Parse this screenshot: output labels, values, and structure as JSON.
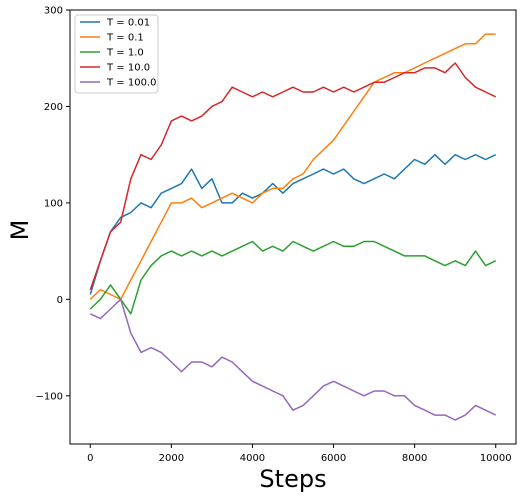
{
  "chart_data": {
    "type": "line",
    "title": "",
    "xlabel": "Steps",
    "ylabel": "M",
    "xlim": [
      -500,
      10500
    ],
    "ylim": [
      -150,
      300
    ],
    "x_ticks": [
      0,
      2000,
      4000,
      6000,
      8000,
      10000
    ],
    "y_ticks": [
      -100,
      0,
      100,
      200,
      300
    ],
    "x_tick_labels": [
      "0",
      "2000",
      "4000",
      "6000",
      "8000",
      "10000"
    ],
    "y_tick_labels": [
      "−100",
      "0",
      "100",
      "200",
      "300"
    ],
    "grid": false,
    "legend": "top-left",
    "series": [
      {
        "name": "T = 0.01",
        "color": "#1f77b4",
        "x": [
          0,
          250,
          500,
          750,
          1000,
          1250,
          1500,
          1750,
          2000,
          2250,
          2500,
          2750,
          3000,
          3250,
          3500,
          3750,
          4000,
          4250,
          4500,
          4750,
          5000,
          5250,
          5500,
          5750,
          6000,
          6250,
          6500,
          6750,
          7000,
          7250,
          7500,
          7750,
          8000,
          8250,
          8500,
          8750,
          9000,
          9250,
          9500,
          9750,
          10000
        ],
        "values": [
          5,
          40,
          70,
          85,
          90,
          100,
          95,
          110,
          115,
          120,
          135,
          115,
          125,
          100,
          100,
          110,
          105,
          110,
          120,
          110,
          120,
          125,
          130,
          135,
          130,
          135,
          125,
          120,
          125,
          130,
          125,
          135,
          145,
          140,
          150,
          140,
          150,
          145,
          150,
          145,
          150
        ]
      },
      {
        "name": "T = 0.1",
        "color": "#ff7f0e",
        "x": [
          0,
          250,
          500,
          750,
          1000,
          1250,
          1500,
          1750,
          2000,
          2250,
          2500,
          2750,
          3000,
          3250,
          3500,
          3750,
          4000,
          4250,
          4500,
          4750,
          5000,
          5250,
          5500,
          5750,
          6000,
          6250,
          6500,
          6750,
          7000,
          7250,
          7500,
          7750,
          8000,
          8250,
          8500,
          8750,
          9000,
          9250,
          9500,
          9750,
          10000
        ],
        "values": [
          0,
          10,
          5,
          0,
          20,
          40,
          60,
          80,
          100,
          100,
          105,
          95,
          100,
          105,
          110,
          105,
          100,
          110,
          115,
          115,
          125,
          130,
          145,
          155,
          165,
          180,
          195,
          210,
          225,
          230,
          235,
          235,
          240,
          245,
          250,
          255,
          260,
          265,
          265,
          275,
          275
        ]
      },
      {
        "name": "T = 1.0",
        "color": "#2ca02c",
        "x": [
          0,
          250,
          500,
          750,
          1000,
          1250,
          1500,
          1750,
          2000,
          2250,
          2500,
          2750,
          3000,
          3250,
          3500,
          3750,
          4000,
          4250,
          4500,
          4750,
          5000,
          5250,
          5500,
          5750,
          6000,
          6250,
          6500,
          6750,
          7000,
          7250,
          7500,
          7750,
          8000,
          8250,
          8500,
          8750,
          9000,
          9250,
          9500,
          9750,
          10000
        ],
        "values": [
          -10,
          0,
          15,
          0,
          -15,
          20,
          35,
          45,
          50,
          45,
          50,
          45,
          50,
          45,
          50,
          55,
          60,
          50,
          55,
          50,
          60,
          55,
          50,
          55,
          60,
          55,
          55,
          60,
          60,
          55,
          50,
          45,
          45,
          45,
          40,
          35,
          40,
          35,
          50,
          35,
          40
        ]
      },
      {
        "name": "T = 10.0",
        "color": "#d62728",
        "x": [
          0,
          250,
          500,
          750,
          1000,
          1250,
          1500,
          1750,
          2000,
          2250,
          2500,
          2750,
          3000,
          3250,
          3500,
          3750,
          4000,
          4250,
          4500,
          4750,
          5000,
          5250,
          5500,
          5750,
          6000,
          6250,
          6500,
          6750,
          7000,
          7250,
          7500,
          7750,
          8000,
          8250,
          8500,
          8750,
          9000,
          9250,
          9500,
          9750,
          10000
        ],
        "values": [
          10,
          40,
          70,
          80,
          125,
          150,
          145,
          160,
          185,
          190,
          185,
          190,
          200,
          205,
          220,
          215,
          210,
          215,
          210,
          215,
          220,
          215,
          215,
          220,
          215,
          220,
          215,
          220,
          225,
          225,
          230,
          235,
          235,
          240,
          240,
          235,
          245,
          230,
          220,
          215,
          210
        ]
      },
      {
        "name": "T = 100.0",
        "color": "#9467bd",
        "x": [
          0,
          250,
          500,
          750,
          1000,
          1250,
          1500,
          1750,
          2000,
          2250,
          2500,
          2750,
          3000,
          3250,
          3500,
          3750,
          4000,
          4250,
          4500,
          4750,
          5000,
          5250,
          5500,
          5750,
          6000,
          6250,
          6500,
          6750,
          7000,
          7250,
          7500,
          7750,
          8000,
          8250,
          8500,
          8750,
          9000,
          9250,
          9500,
          9750,
          10000
        ],
        "values": [
          -15,
          -20,
          -10,
          0,
          -35,
          -55,
          -50,
          -55,
          -65,
          -75,
          -65,
          -65,
          -70,
          -60,
          -65,
          -75,
          -85,
          -90,
          -95,
          -100,
          -115,
          -110,
          -100,
          -90,
          -85,
          -90,
          -95,
          -100,
          -95,
          -95,
          -100,
          -100,
          -110,
          -115,
          -120,
          -120,
          -125,
          -120,
          -110,
          -115,
          -120
        ]
      }
    ]
  }
}
